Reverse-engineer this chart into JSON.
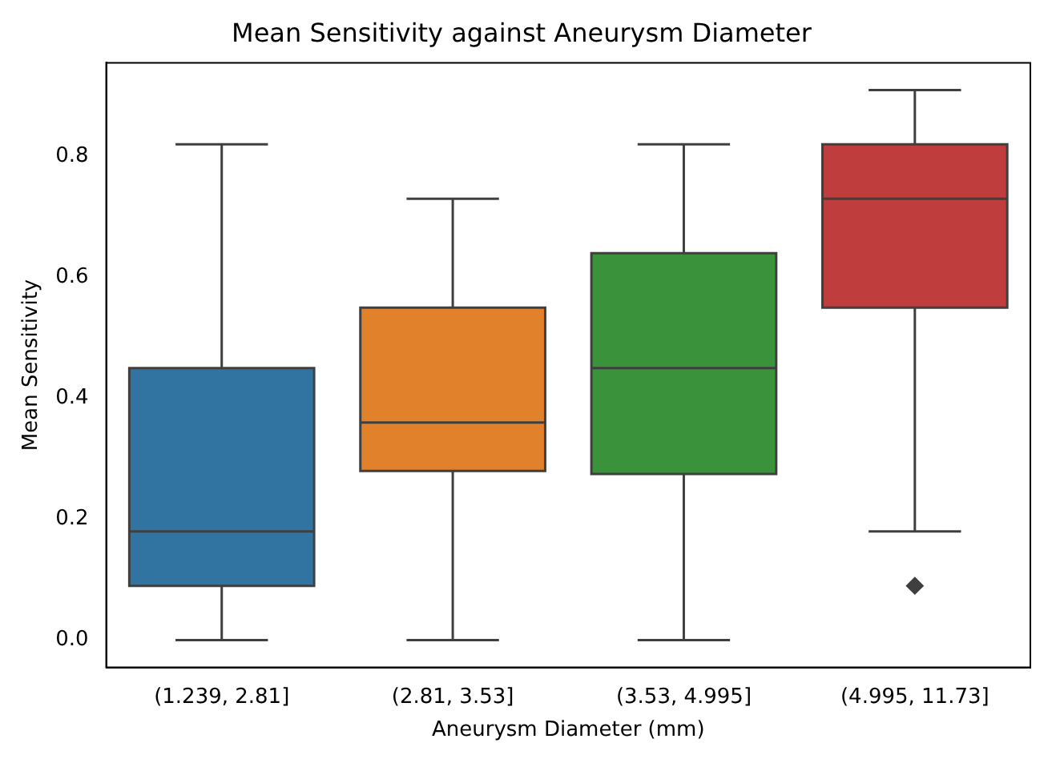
{
  "chart_data": {
    "type": "box",
    "title": "Mean Sensitivity against Aneurysm Diameter",
    "xlabel": "Aneurysm Diameter (mm)",
    "ylabel": "Mean Sensitivity",
    "categories": [
      "(1.239, 2.81]",
      "(2.81, 3.53]",
      "(3.53, 4.995]",
      "(4.995, 11.73]"
    ],
    "colors": [
      "#3274a1",
      "#e1812c",
      "#3a923a",
      "#c03d3e"
    ],
    "boxes": [
      {
        "low": 0,
        "q1": 0.09,
        "median": 0.18,
        "q3": 0.45,
        "high": 0.82
      },
      {
        "low": 0,
        "q1": 0.28,
        "median": 0.36,
        "q3": 0.55,
        "high": 0.73
      },
      {
        "low": 0,
        "q1": 0.275,
        "median": 0.45,
        "q3": 0.64,
        "high": 0.82
      },
      {
        "low": 0.18,
        "q1": 0.55,
        "median": 0.73,
        "q3": 0.82,
        "high": 0.91,
        "outliers": [
          0.09
        ]
      }
    ],
    "ylim": [
      -0.045,
      0.955
    ],
    "yticks": [
      {
        "value": 0,
        "label": "0.0"
      },
      {
        "value": 0.2,
        "label": "0.2"
      },
      {
        "value": 0.4,
        "label": "0.4"
      },
      {
        "value": 0.6,
        "label": "0.6"
      },
      {
        "value": 0.8,
        "label": "0.8"
      }
    ],
    "grid": false,
    "legend": false
  }
}
